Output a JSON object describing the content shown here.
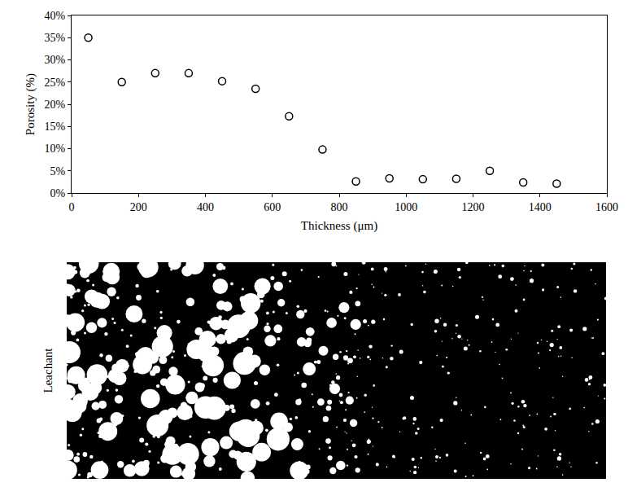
{
  "chart_data": {
    "type": "scatter",
    "x_label": "Thickness (μm)",
    "y_label": "Porosity (%)",
    "x": [
      50,
      150,
      250,
      350,
      450,
      550,
      650,
      750,
      850,
      950,
      1050,
      1150,
      1250,
      1350,
      1450
    ],
    "values": [
      35,
      25,
      27,
      27,
      25.2,
      23.5,
      17.3,
      9.8,
      2.6,
      3.3,
      3.1,
      3.2,
      5,
      2.4,
      2.1
    ],
    "color": "#000000",
    "marker": "circle-open",
    "xlim": [
      0,
      1600
    ],
    "xticks": [
      0,
      200,
      400,
      600,
      800,
      1000,
      1200,
      1400,
      1600
    ],
    "ylim": [
      0,
      40
    ],
    "yticks": [
      {
        "value": 0,
        "label": "0%"
      },
      {
        "value": 5,
        "label": "5%"
      },
      {
        "value": 10,
        "label": "10%"
      },
      {
        "value": 15,
        "label": "15%"
      },
      {
        "value": 20,
        "label": "20%"
      },
      {
        "value": 25,
        "label": "25%"
      },
      {
        "value": 30,
        "label": "30%"
      },
      {
        "value": 35,
        "label": "35%"
      },
      {
        "value": 40,
        "label": "40%"
      }
    ],
    "grid": false
  },
  "micrograph": {
    "label": "Leachant"
  }
}
